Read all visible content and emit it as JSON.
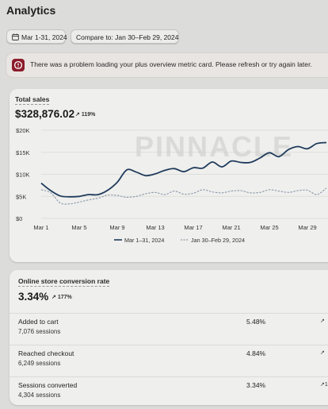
{
  "page": {
    "title": "Analytics"
  },
  "filters": {
    "date_range": "Mar 1-31, 2024",
    "compare": "Compare to: Jan 30–Feb 29, 2024"
  },
  "alert": {
    "message": "There was a problem loading your plus overview metric card. Please refresh or try again later.",
    "icon": "alert-icon",
    "color": "#8c1b2a"
  },
  "total_sales": {
    "label": "Total sales",
    "value": "$328,876.02",
    "change": "119%",
    "change_arrow": "↗",
    "legend_current": "Mar 1–31, 2024",
    "legend_compare": "Jan 30–Feb 29, 2024",
    "y_ticks": [
      "$20K",
      "$15K",
      "$10K",
      "$5K",
      "$0"
    ],
    "x_ticks": [
      "Mar 1",
      "Mar 5",
      "Mar 9",
      "Mar 13",
      "Mar 17",
      "Mar 21",
      "Mar 25",
      "Mar 29"
    ]
  },
  "watermark": "PINNACLE",
  "chart_data": {
    "type": "line",
    "ylim": [
      0,
      20000
    ],
    "x": [
      1,
      2,
      3,
      4,
      5,
      6,
      7,
      8,
      9,
      10,
      11,
      12,
      13,
      14,
      15,
      16,
      17,
      18,
      19,
      20,
      21,
      22,
      23,
      24,
      25,
      26,
      27,
      28,
      29,
      30,
      31
    ],
    "series": [
      {
        "name": "Mar 1–31, 2024",
        "color": "#1f3b5c",
        "values": [
          8000,
          6300,
          5100,
          4900,
          5000,
          5400,
          5400,
          6400,
          8200,
          11000,
          10500,
          9700,
          10100,
          10900,
          11300,
          10600,
          11500,
          11400,
          12800,
          11700,
          13000,
          12700,
          12700,
          13700,
          14900,
          14000,
          15600,
          16300,
          15800,
          17000,
          17200
        ]
      },
      {
        "name": "Jan 30–Feb 29, 2024",
        "color": "#8a9aaa",
        "dashed": true,
        "values": [
          6500,
          5800,
          3500,
          3300,
          3700,
          4200,
          4600,
          5300,
          5200,
          4800,
          5000,
          5600,
          5900,
          5400,
          6200,
          5500,
          5700,
          6500,
          6000,
          5800,
          6200,
          6300,
          5800,
          5900,
          6500,
          6200,
          5900,
          6300,
          6400,
          5400,
          6900
        ]
      }
    ]
  },
  "conversion": {
    "label": "Online store conversion rate",
    "value": "3.34%",
    "change": "177%",
    "change_arrow": "↗",
    "rows": [
      {
        "label": "Added to cart",
        "sessions": "7,076 sessions",
        "rate": "5.48%",
        "change": "↗"
      },
      {
        "label": "Reached checkout",
        "sessions": "6,249 sessions",
        "rate": "4.84%",
        "change": "↗"
      },
      {
        "label": "Sessions converted",
        "sessions": "4,304 sessions",
        "rate": "3.34%",
        "change": "↗1"
      }
    ]
  }
}
